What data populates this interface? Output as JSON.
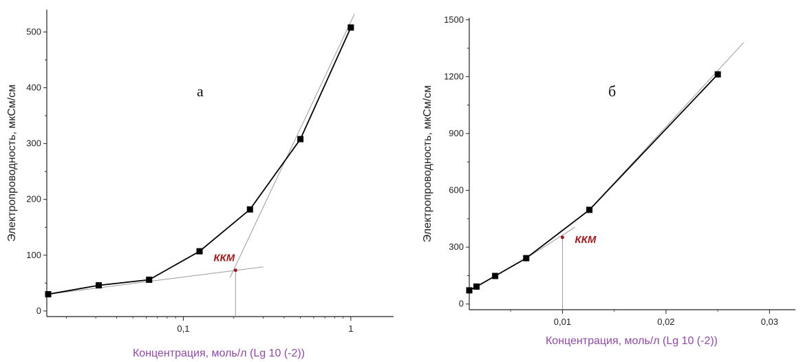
{
  "colors": {
    "axis": "#222222",
    "series": "#000000",
    "tangent": "#9a9a9a",
    "xlabel": "#8e4aa0",
    "kkm": "#9b1c1c"
  },
  "chart_data": [
    {
      "type": "line",
      "panel_label": "а",
      "xscale": "log",
      "xlim": [
        0.0156,
        1.8
      ],
      "ylim": [
        -10,
        540
      ],
      "xlabel": "Концентрация, моль/л (Lg 10 (-2))",
      "ylabel": "Электропроводность, мкСм/см",
      "xticks": [
        {
          "v": 0.1,
          "label": "0,1"
        },
        {
          "v": 1,
          "label": "1"
        }
      ],
      "yticks": [
        0,
        100,
        200,
        300,
        400,
        500
      ],
      "series": [
        {
          "points": [
            [
              0.0156,
              30
            ],
            [
              0.03125,
              46
            ],
            [
              0.0625,
              56
            ],
            [
              0.125,
              107
            ],
            [
              0.25,
              182
            ],
            [
              0.5,
              308
            ],
            [
              1.0,
              508
            ]
          ]
        }
      ],
      "tangents": [
        {
          "from": [
            0.0156,
            30
          ],
          "to": [
            0.3,
            79
          ]
        },
        {
          "from": [
            0.19,
            60
          ],
          "to": [
            1.05,
            532
          ]
        }
      ],
      "annotation": {
        "text": "ККМ",
        "x": 0.205,
        "y": 73
      }
    },
    {
      "type": "line",
      "panel_label": "б",
      "xscale": "linear",
      "xlim": [
        0.001,
        0.0325
      ],
      "ylim": [
        -30,
        1510
      ],
      "xlabel": "Концентрация, моль/л (Lg 10 (-2))",
      "ylabel": "Электропроводность, мкСм/см",
      "xticks": [
        {
          "v": 0.01,
          "label": "0,01"
        },
        {
          "v": 0.02,
          "label": "0,02"
        },
        {
          "v": 0.03,
          "label": "0,03"
        }
      ],
      "yticks": [
        0,
        300,
        600,
        900,
        1200,
        1500
      ],
      "series": [
        {
          "points": [
            [
              0.001,
              72
            ],
            [
              0.0017,
              92
            ],
            [
              0.0035,
              148
            ],
            [
              0.0065,
              242
            ],
            [
              0.0126,
              497
            ],
            [
              0.025,
              1212
            ]
          ]
        }
      ],
      "tangents": [
        {
          "from": [
            0.0065,
            242
          ],
          "to": [
            0.0112,
            405
          ]
        },
        {
          "from": [
            0.0126,
            497
          ],
          "to": [
            0.0275,
            1380
          ]
        }
      ],
      "annotation": {
        "text": "ККМ",
        "x": 0.01,
        "y": 352
      }
    }
  ]
}
